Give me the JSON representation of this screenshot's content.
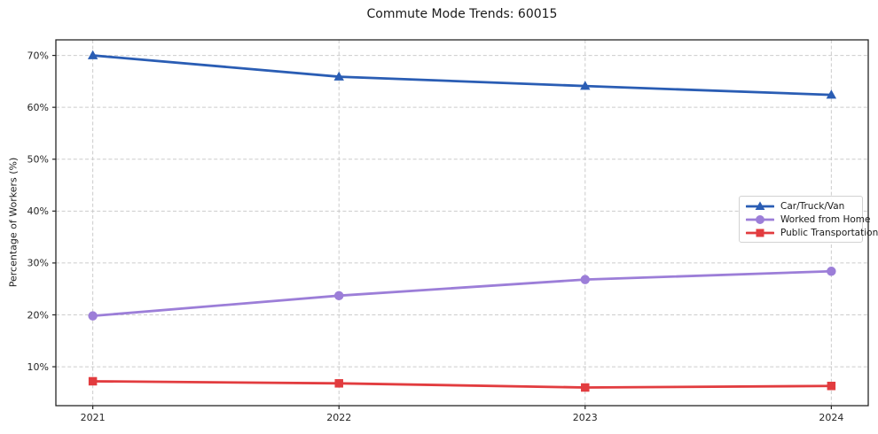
{
  "chart_data": {
    "type": "line",
    "title": "Commute Mode Trends: 60015",
    "xlabel": "",
    "ylabel": "Percentage of Workers (%)",
    "x": [
      2021,
      2022,
      2023,
      2024
    ],
    "x_tick_labels": [
      "2021",
      "2022",
      "2023",
      "2024"
    ],
    "y_ticks": [
      10,
      20,
      30,
      40,
      50,
      60,
      70
    ],
    "y_tick_labels": [
      "10%",
      "20%",
      "30%",
      "40%",
      "50%",
      "60%",
      "70%"
    ],
    "xlim": [
      2020.85,
      2024.15
    ],
    "ylim": [
      2.5,
      73.0
    ],
    "grid": true,
    "grid_style": "dashed",
    "legend_position": "center-right",
    "series": [
      {
        "name": "Car/Truck/Van",
        "marker": "triangle",
        "color": "#2a5db4",
        "values": [
          70.0,
          65.9,
          64.1,
          62.4
        ]
      },
      {
        "name": "Worked from Home",
        "marker": "circle",
        "color": "#9c7ed8",
        "values": [
          19.8,
          23.7,
          26.8,
          28.4
        ]
      },
      {
        "name": "Public Transportation",
        "marker": "square",
        "color": "#e23c3f",
        "values": [
          7.2,
          6.8,
          6.0,
          6.3
        ]
      }
    ]
  },
  "colors": {
    "background": "#ffffff",
    "spine": "#262626",
    "gridline": "#cccccc",
    "tick_text": "#262626",
    "title_text": "#1a1a1a",
    "legend_border": "#d2d2d2"
  }
}
